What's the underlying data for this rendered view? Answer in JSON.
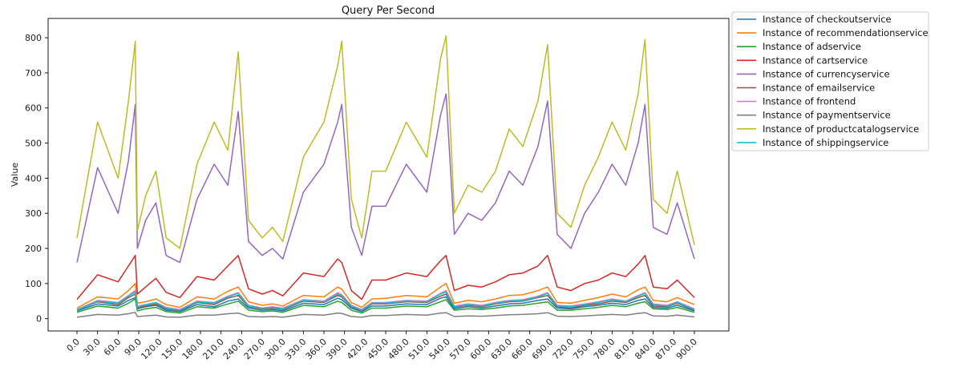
{
  "chart_data": {
    "type": "line",
    "title": "Query Per Second",
    "xlabel": "",
    "ylabel": "Value",
    "xlim": [
      0,
      900
    ],
    "ylim": [
      -35,
      855
    ],
    "grid": false,
    "legend_position": "outside-right",
    "x_ticks": [
      "0.0",
      "30.0",
      "60.0",
      "90.0",
      "120.0",
      "150.0",
      "180.0",
      "210.0",
      "240.0",
      "270.0",
      "300.0",
      "330.0",
      "360.0",
      "390.0",
      "420.0",
      "450.0",
      "480.0",
      "510.0",
      "540.0",
      "570.0",
      "600.0",
      "630.0",
      "660.0",
      "690.0",
      "720.0",
      "750.0",
      "780.0",
      "810.0",
      "840.0",
      "870.0",
      "900.0"
    ],
    "y_ticks": [
      "0",
      "100",
      "200",
      "300",
      "400",
      "500",
      "600",
      "700",
      "800"
    ],
    "x": [
      0,
      30,
      60,
      75,
      85,
      88,
      100,
      115,
      130,
      150,
      175,
      200,
      220,
      235,
      250,
      270,
      285,
      300,
      330,
      360,
      380,
      386,
      400,
      415,
      430,
      450,
      480,
      510,
      530,
      538,
      550,
      570,
      590,
      610,
      630,
      650,
      672,
      686,
      700,
      720,
      740,
      760,
      780,
      800,
      818,
      828,
      840,
      860,
      875,
      900
    ],
    "series": [
      {
        "name": "Instance of checkoutservice",
        "color": "#1f77b4",
        "values": [
          22,
          42,
          36,
          52,
          60,
          28,
          34,
          38,
          24,
          20,
          40,
          34,
          50,
          56,
          30,
          24,
          26,
          22,
          44,
          40,
          58,
          54,
          30,
          20,
          36,
          36,
          42,
          40,
          58,
          62,
          28,
          34,
          30,
          36,
          42,
          44,
          52,
          56,
          30,
          28,
          34,
          38,
          44,
          40,
          52,
          56,
          32,
          30,
          38,
          22
        ]
      },
      {
        "name": "Instance of recommendationservice",
        "color": "#ff7f0e",
        "values": [
          30,
          62,
          56,
          80,
          100,
          44,
          48,
          56,
          40,
          32,
          62,
          56,
          78,
          90,
          48,
          38,
          42,
          36,
          66,
          62,
          90,
          84,
          46,
          32,
          56,
          58,
          66,
          62,
          90,
          100,
          44,
          52,
          48,
          56,
          66,
          68,
          80,
          90,
          46,
          44,
          52,
          60,
          70,
          62,
          82,
          90,
          52,
          48,
          60,
          40
        ]
      },
      {
        "name": "Instance of adservice",
        "color": "#2ca02c",
        "values": [
          18,
          36,
          30,
          44,
          56,
          22,
          28,
          32,
          20,
          16,
          34,
          30,
          42,
          50,
          24,
          20,
          22,
          18,
          38,
          34,
          50,
          46,
          24,
          16,
          30,
          30,
          36,
          34,
          48,
          54,
          24,
          28,
          26,
          30,
          36,
          38,
          44,
          48,
          24,
          24,
          28,
          32,
          38,
          34,
          44,
          48,
          28,
          26,
          32,
          18
        ]
      },
      {
        "name": "Instance of cartservice",
        "color": "#d62728",
        "values": [
          55,
          125,
          105,
          150,
          180,
          70,
          90,
          115,
          75,
          60,
          120,
          110,
          150,
          180,
          85,
          70,
          80,
          65,
          130,
          120,
          170,
          160,
          80,
          55,
          110,
          110,
          130,
          120,
          165,
          180,
          80,
          95,
          90,
          105,
          125,
          130,
          150,
          180,
          90,
          80,
          100,
          110,
          130,
          120,
          155,
          180,
          90,
          85,
          110,
          60
        ]
      },
      {
        "name": "Instance of currencyservice",
        "color": "#9467bd",
        "values": [
          160,
          430,
          300,
          450,
          610,
          200,
          280,
          330,
          180,
          160,
          340,
          440,
          380,
          590,
          220,
          180,
          200,
          170,
          360,
          440,
          560,
          610,
          260,
          180,
          320,
          320,
          440,
          360,
          580,
          640,
          240,
          300,
          280,
          330,
          420,
          380,
          490,
          620,
          240,
          200,
          300,
          360,
          440,
          380,
          500,
          610,
          260,
          240,
          330,
          170
        ]
      },
      {
        "name": "Instance of emailservice",
        "color": "#8c564b",
        "values": [
          24,
          48,
          40,
          60,
          70,
          30,
          36,
          42,
          28,
          22,
          46,
          40,
          58,
          66,
          34,
          28,
          30,
          26,
          50,
          46,
          66,
          62,
          34,
          22,
          42,
          42,
          48,
          46,
          64,
          70,
          32,
          38,
          34,
          42,
          48,
          50,
          60,
          66,
          34,
          30,
          38,
          42,
          50,
          46,
          60,
          66,
          36,
          34,
          44,
          24
        ]
      },
      {
        "name": "Instance of frontend",
        "color": "#e377c2",
        "values": [
          26,
          52,
          46,
          66,
          80,
          36,
          40,
          46,
          32,
          26,
          50,
          46,
          64,
          74,
          38,
          30,
          34,
          30,
          54,
          50,
          74,
          68,
          38,
          26,
          46,
          46,
          52,
          50,
          72,
          80,
          36,
          42,
          38,
          46,
          52,
          54,
          64,
          74,
          38,
          36,
          42,
          48,
          56,
          50,
          66,
          74,
          42,
          38,
          48,
          28
        ]
      },
      {
        "name": "Instance of paymentservice",
        "color": "#7f7f7f",
        "values": [
          4,
          12,
          10,
          14,
          18,
          6,
          8,
          10,
          5,
          4,
          10,
          10,
          14,
          16,
          6,
          5,
          6,
          4,
          12,
          10,
          16,
          15,
          6,
          4,
          9,
          9,
          12,
          10,
          16,
          17,
          6,
          8,
          7,
          9,
          11,
          12,
          14,
          17,
          7,
          6,
          8,
          10,
          12,
          10,
          15,
          17,
          8,
          7,
          10,
          5
        ]
      },
      {
        "name": "Instance of productcatalogservice",
        "color": "#bcbd22",
        "values": [
          230,
          560,
          400,
          620,
          790,
          250,
          350,
          420,
          230,
          200,
          440,
          560,
          480,
          760,
          280,
          230,
          260,
          220,
          460,
          560,
          720,
          790,
          340,
          230,
          420,
          420,
          560,
          460,
          740,
          805,
          300,
          380,
          360,
          420,
          540,
          490,
          620,
          780,
          300,
          260,
          380,
          460,
          560,
          480,
          640,
          795,
          340,
          300,
          420,
          210
        ]
      },
      {
        "name": "Instance of shippingservice",
        "color": "#17becf",
        "values": [
          24,
          50,
          44,
          64,
          76,
          32,
          40,
          46,
          30,
          24,
          48,
          44,
          62,
          72,
          36,
          30,
          32,
          28,
          52,
          48,
          70,
          66,
          36,
          24,
          44,
          44,
          50,
          48,
          70,
          76,
          34,
          40,
          36,
          44,
          50,
          52,
          62,
          72,
          36,
          34,
          40,
          46,
          54,
          48,
          64,
          72,
          40,
          36,
          46,
          26
        ]
      }
    ]
  }
}
